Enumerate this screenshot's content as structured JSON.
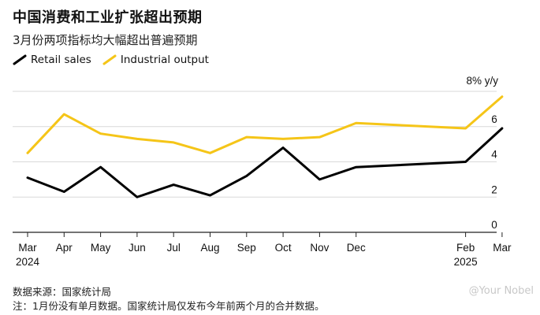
{
  "header": {
    "title": "中国消费和工业扩张超出预期",
    "subtitle": "3月份两项指标均大幅超出普遍预期"
  },
  "footer": {
    "source": "数据来源：国家统计局",
    "note": "注：1月份没有单月数据。国家统计局仅发布今年前两个月的合并数据。"
  },
  "watermark": "@Your Nobel",
  "colors": {
    "retail": "#000000",
    "industrial": "#f5c518",
    "grid": "#d9d9d9"
  },
  "chart_data": {
    "type": "line",
    "title": "中国消费和工业扩张超出预期",
    "subtitle": "3月份两项指标均大幅超出普遍预期",
    "unit_label": "8% y/y",
    "categories": [
      "Mar 2024",
      "Apr",
      "May",
      "Jun",
      "Jul",
      "Aug",
      "Sep",
      "Oct",
      "Nov",
      "Dec",
      "Feb 2025",
      "Mar"
    ],
    "x_ticks": [
      {
        "label": "Mar",
        "sub": "2024",
        "pos": 0
      },
      {
        "label": "Apr",
        "sub": "",
        "pos": 1
      },
      {
        "label": "May",
        "sub": "",
        "pos": 2
      },
      {
        "label": "Jun",
        "sub": "",
        "pos": 3
      },
      {
        "label": "Jul",
        "sub": "",
        "pos": 4
      },
      {
        "label": "Aug",
        "sub": "",
        "pos": 5
      },
      {
        "label": "Sep",
        "sub": "",
        "pos": 6
      },
      {
        "label": "Oct",
        "sub": "",
        "pos": 7
      },
      {
        "label": "Nov",
        "sub": "",
        "pos": 8
      },
      {
        "label": "Dec",
        "sub": "",
        "pos": 9
      },
      {
        "label": "Feb",
        "sub": "2025",
        "pos": 12
      },
      {
        "label": "Mar",
        "sub": "",
        "pos": 13
      }
    ],
    "ylim": [
      0,
      8
    ],
    "y_ticks": [
      0,
      2,
      4,
      6
    ],
    "grid": true,
    "legend": "top-left",
    "series": [
      {
        "name": "Retail sales",
        "color": "#000000",
        "x": [
          0,
          1,
          2,
          3,
          4,
          5,
          6,
          7,
          8,
          9,
          12,
          13
        ],
        "values": [
          3.1,
          2.3,
          3.7,
          2.0,
          2.7,
          2.1,
          3.2,
          4.8,
          3.0,
          3.7,
          4.0,
          5.9
        ]
      },
      {
        "name": "Industrial output",
        "color": "#f5c518",
        "x": [
          0,
          1,
          2,
          3,
          4,
          5,
          6,
          7,
          8,
          9,
          12,
          13
        ],
        "values": [
          4.5,
          6.7,
          5.6,
          5.3,
          5.1,
          4.5,
          5.4,
          5.3,
          5.4,
          6.2,
          5.9,
          7.7
        ]
      }
    ]
  }
}
